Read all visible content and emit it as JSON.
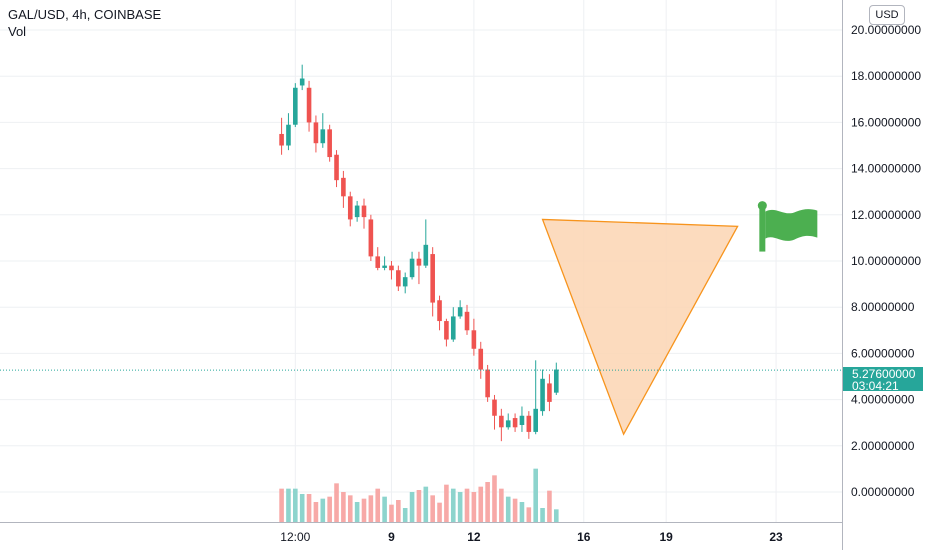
{
  "legend": {
    "symbol": "GAL/USD, 4h, COINBASE",
    "vol_label": "Vol"
  },
  "currency_button": "USD",
  "last_price": {
    "value": "5.27600000",
    "countdown": "03:04:21",
    "numeric": 5.276
  },
  "colors": {
    "up": "#26a69a",
    "down": "#ef5350",
    "up_vol": "#8dd4cd",
    "down_vol": "#f7a9a7",
    "triangle_fill": "#fbd5b3",
    "triangle_stroke": "#f7941d",
    "flag": "#4caf50",
    "grid": "#eef0f3"
  },
  "chart_data": {
    "type": "candlestick",
    "y_ticks": [
      "20.00000000",
      "18.00000000",
      "16.00000000",
      "14.00000000",
      "12.00000000",
      "10.00000000",
      "8.00000000",
      "6.00000000",
      "4.00000000",
      "2.00000000",
      "0.00000000"
    ],
    "y_tick_values": [
      20,
      18,
      16,
      14,
      12,
      10,
      8,
      6,
      4,
      2,
      0
    ],
    "ylim": [
      -1.3,
      21.3
    ],
    "x_ticks": [
      {
        "label": "12:00",
        "t": 0.5
      },
      {
        "label": "9",
        "t": 4
      },
      {
        "label": "12",
        "t": 7
      },
      {
        "label": "16",
        "t": 11
      },
      {
        "label": "19",
        "t": 14
      },
      {
        "label": "23",
        "t": 18
      }
    ],
    "xlim": [
      -10.25,
      20.4
    ],
    "candles": [
      [
        15.5,
        15.0,
        14.6,
        16.2
      ],
      [
        15.0,
        15.9,
        14.8,
        16.4
      ],
      [
        15.9,
        17.5,
        15.8,
        17.7
      ],
      [
        17.6,
        17.9,
        17.4,
        18.5
      ],
      [
        17.5,
        16.0,
        15.6,
        17.8
      ],
      [
        16.0,
        15.1,
        14.7,
        16.3
      ],
      [
        15.1,
        15.7,
        14.9,
        16.4
      ],
      [
        15.7,
        14.5,
        14.3,
        15.9
      ],
      [
        14.6,
        13.5,
        13.2,
        14.8
      ],
      [
        13.6,
        12.8,
        12.3,
        13.9
      ],
      [
        12.8,
        11.8,
        11.5,
        13.0
      ],
      [
        11.9,
        12.4,
        11.7,
        12.6
      ],
      [
        12.4,
        11.9,
        11.4,
        12.7
      ],
      [
        11.8,
        10.2,
        10.0,
        12.0
      ],
      [
        10.2,
        9.7,
        9.6,
        10.6
      ],
      [
        9.7,
        9.8,
        9.6,
        10.2
      ],
      [
        9.8,
        9.6,
        9.2,
        10.0
      ],
      [
        9.6,
        8.9,
        8.7,
        9.8
      ],
      [
        8.9,
        9.3,
        8.6,
        9.5
      ],
      [
        9.3,
        10.1,
        9.2,
        10.4
      ],
      [
        10.1,
        9.8,
        9.0,
        10.4
      ],
      [
        9.8,
        10.7,
        9.7,
        11.8
      ],
      [
        10.3,
        8.2,
        7.6,
        10.6
      ],
      [
        8.3,
        7.4,
        7.0,
        8.5
      ],
      [
        7.4,
        6.6,
        6.3,
        7.5
      ],
      [
        6.6,
        7.6,
        6.5,
        8.0
      ],
      [
        7.6,
        8.0,
        7.5,
        8.3
      ],
      [
        7.8,
        7.0,
        6.8,
        8.1
      ],
      [
        7.0,
        6.2,
        5.9,
        7.5
      ],
      [
        6.2,
        5.3,
        4.9,
        6.5
      ],
      [
        5.3,
        4.1,
        3.9,
        5.5
      ],
      [
        4.0,
        3.3,
        2.7,
        4.2
      ],
      [
        3.3,
        2.8,
        2.2,
        3.6
      ],
      [
        2.8,
        3.1,
        2.7,
        3.4
      ],
      [
        3.2,
        2.8,
        2.6,
        3.4
      ],
      [
        2.9,
        3.3,
        2.6,
        3.7
      ],
      [
        3.3,
        2.6,
        2.3,
        3.5
      ],
      [
        2.6,
        3.6,
        2.5,
        5.7
      ],
      [
        3.5,
        4.9,
        3.3,
        5.3
      ],
      [
        4.7,
        3.9,
        3.5,
        5.1
      ],
      [
        4.3,
        5.3,
        4.2,
        5.6
      ]
    ],
    "volume_scale": [
      0,
      24
    ],
    "volumes": [
      5.0,
      5.0,
      5.0,
      4.2,
      4.2,
      3.0,
      3.5,
      3.8,
      5.8,
      4.5,
      4.0,
      3.0,
      3.5,
      4.0,
      5.0,
      3.8,
      2.6,
      3.3,
      2.1,
      4.5,
      4.8,
      5.3,
      4.0,
      2.9,
      5.6,
      5.0,
      4.5,
      5.0,
      4.5,
      5.3,
      6.0,
      7.0,
      5.0,
      3.8,
      3.5,
      3.0,
      2.2,
      8.0,
      2.1,
      4.7,
      1.9
    ],
    "pattern": {
      "type": "triangle",
      "points": [
        [
          9.5,
          11.8
        ],
        [
          16.6,
          11.5
        ],
        [
          12.45,
          2.5
        ]
      ]
    },
    "flag": {
      "x": 17.5,
      "y": 12.4
    }
  }
}
